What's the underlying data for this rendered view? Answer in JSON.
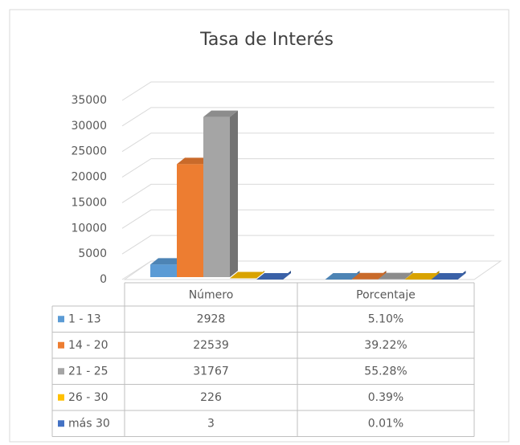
{
  "chart_data": {
    "type": "bar3d",
    "title": "Tasa de Interés",
    "categories": [
      "Número",
      "Porcentaje"
    ],
    "series": [
      {
        "name": "1 - 13",
        "color": "#5b9bd5",
        "values": [
          2928,
          5.1
        ],
        "value_labels": [
          "2928",
          "5.10%"
        ]
      },
      {
        "name": "14 - 20",
        "color": "#ed7d31",
        "values": [
          22539,
          39.22
        ],
        "value_labels": [
          "22539",
          "39.22%"
        ]
      },
      {
        "name": "21 - 25",
        "color": "#a5a5a5",
        "values": [
          31767,
          55.28
        ],
        "value_labels": [
          "31767",
          "55.28%"
        ]
      },
      {
        "name": "26 - 30",
        "color": "#ffc000",
        "values": [
          226,
          0.39
        ],
        "value_labels": [
          "226",
          "0.39%"
        ]
      },
      {
        "name": "más 30",
        "color": "#4472c4",
        "values": [
          3,
          0.01
        ],
        "value_labels": [
          "3",
          "0.01%"
        ]
      }
    ],
    "ylim": [
      0,
      35000
    ],
    "yticks": [
      0,
      5000,
      10000,
      15000,
      20000,
      25000,
      30000,
      35000
    ],
    "grid": true
  }
}
